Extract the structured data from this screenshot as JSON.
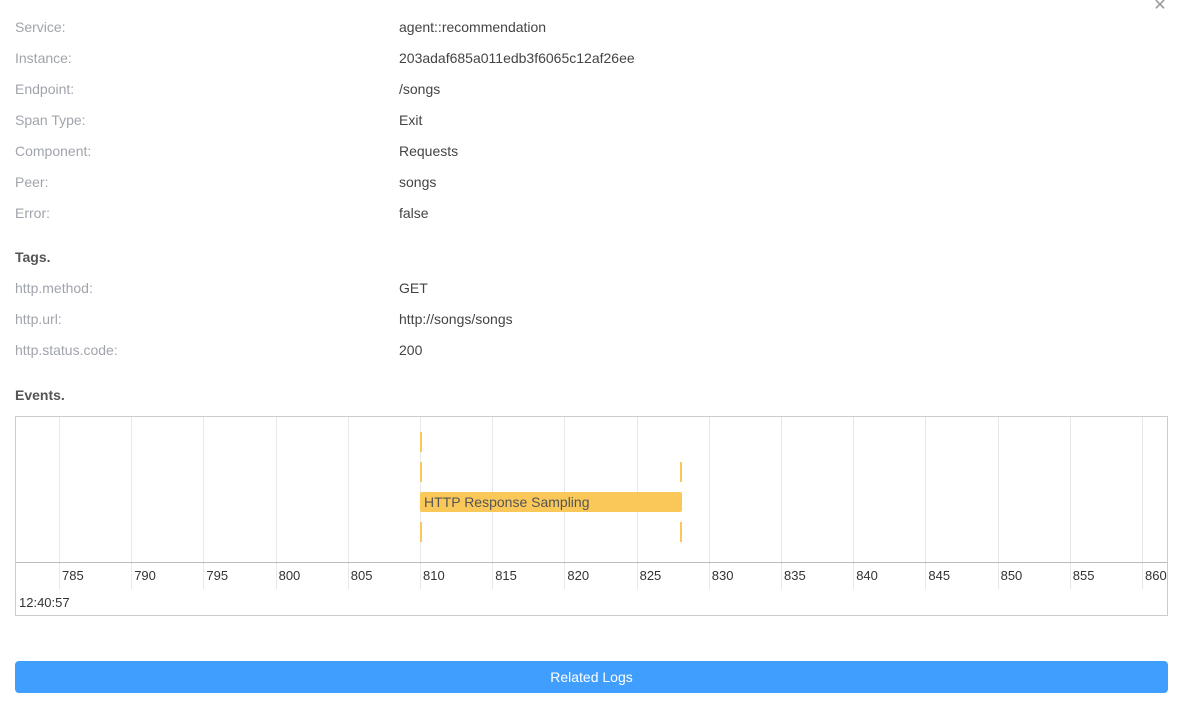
{
  "close_icon": "close-icon",
  "fields": [
    {
      "label": "Service:",
      "value": "agent::recommendation"
    },
    {
      "label": "Instance:",
      "value": "203adaf685a011edb3f6065c12af26ee"
    },
    {
      "label": "Endpoint:",
      "value": "/songs"
    },
    {
      "label": "Span Type:",
      "value": "Exit"
    },
    {
      "label": "Component:",
      "value": "Requests"
    },
    {
      "label": "Peer:",
      "value": "songs"
    },
    {
      "label": "Error:",
      "value": "false"
    }
  ],
  "tags_title": "Tags.",
  "tags": [
    {
      "label": "http.method:",
      "value": "GET"
    },
    {
      "label": "http.url:",
      "value": "http://songs/songs"
    },
    {
      "label": "http.status.code:",
      "value": "200"
    }
  ],
  "events_title": "Events.",
  "timeline": {
    "ticks": [
      "785",
      "790",
      "795",
      "800",
      "805",
      "810",
      "815",
      "820",
      "825",
      "830",
      "835",
      "840",
      "845",
      "850",
      "855",
      "860"
    ],
    "time_label": "12:40:57",
    "event_color": "#fac858",
    "events": [
      {
        "name": "HTTP Response Sampling",
        "start": 810,
        "end": 828
      }
    ]
  },
  "related_logs_label": "Related Logs"
}
